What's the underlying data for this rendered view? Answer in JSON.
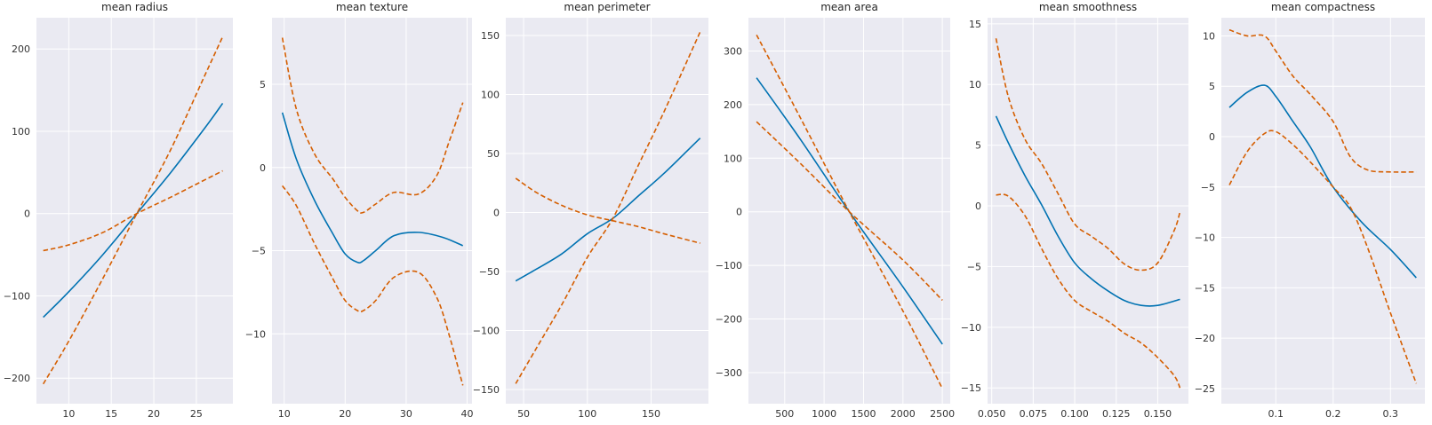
{
  "figure": {
    "background": "#ffffff",
    "panel_background": "#EAEAF2",
    "grid_color": "#ffffff"
  },
  "chart_data": [
    {
      "type": "line",
      "title": "mean radius",
      "xlim": [
        6.2,
        29.3
      ],
      "ylim": [
        -231,
        238
      ],
      "xticks": [
        10,
        15,
        20,
        25
      ],
      "yticks": [
        -200,
        -100,
        0,
        100,
        200
      ],
      "grid": true,
      "series": [
        {
          "role": "partial dependence",
          "color": "#0072B2",
          "dash": "solid",
          "x": [
            7,
            10,
            14,
            18,
            22,
            26,
            28.1
          ],
          "y": [
            -126,
            -95,
            -50,
            0,
            50,
            104,
            134
          ]
        },
        {
          "role": "upper confidence",
          "color": "#D55E00",
          "dash": "dashed",
          "x": [
            7,
            10,
            14,
            18,
            22,
            26,
            28.1
          ],
          "y": [
            -45,
            -38,
            -23,
            0,
            20,
            41,
            52
          ]
        },
        {
          "role": "lower confidence",
          "color": "#D55E00",
          "dash": "dashed",
          "x": [
            7,
            10,
            14,
            18,
            22,
            26,
            28.1
          ],
          "y": [
            -207,
            -155,
            -79,
            0,
            78,
            168,
            215
          ]
        }
      ]
    },
    {
      "type": "line",
      "title": "mean texture",
      "xlim": [
        8,
        40.8
      ],
      "ylim": [
        -14.2,
        9
      ],
      "xticks": [
        10,
        20,
        30,
        40
      ],
      "yticks": [
        -10,
        -5,
        0,
        5
      ],
      "grid": true,
      "series": [
        {
          "role": "partial dependence",
          "color": "#0072B2",
          "dash": "solid",
          "x": [
            9.7,
            12,
            15,
            18,
            20,
            22,
            23,
            25,
            28,
            32,
            36,
            39.3
          ],
          "y": [
            3.3,
            0.5,
            -2,
            -4,
            -5.2,
            -5.7,
            -5.6,
            -5,
            -4.1,
            -3.9,
            -4.2,
            -4.7
          ]
        },
        {
          "role": "upper confidence",
          "color": "#D55E00",
          "dash": "dashed",
          "x": [
            9.7,
            12,
            15,
            18,
            20,
            22,
            23,
            25,
            28,
            32,
            35,
            37,
            39.3
          ],
          "y": [
            7.8,
            3.5,
            0.8,
            -0.7,
            -1.8,
            -2.6,
            -2.7,
            -2.2,
            -1.5,
            -1.6,
            -0.5,
            1.5,
            3.9
          ]
        },
        {
          "role": "lower confidence",
          "color": "#D55E00",
          "dash": "dashed",
          "x": [
            9.7,
            12,
            15,
            18,
            20,
            22,
            23,
            25,
            28,
            32,
            35,
            37,
            39.3
          ],
          "y": [
            -1.1,
            -2.3,
            -4.6,
            -6.7,
            -8,
            -8.6,
            -8.6,
            -8,
            -6.6,
            -6.3,
            -7.8,
            -10,
            -13.1
          ]
        }
      ]
    },
    {
      "type": "line",
      "title": "mean perimeter",
      "xlim": [
        36,
        195
      ],
      "ylim": [
        -162,
        165
      ],
      "xticks": [
        50,
        100,
        150
      ],
      "yticks": [
        -150,
        -100,
        -50,
        0,
        50,
        100,
        150
      ],
      "grid": true,
      "series": [
        {
          "role": "partial dependence",
          "color": "#0072B2",
          "dash": "solid",
          "x": [
            43.8,
            60,
            80,
            100,
            120,
            140,
            160,
            188.5
          ],
          "y": [
            -58,
            -48,
            -35,
            -18,
            -5,
            14,
            33,
            63
          ]
        },
        {
          "role": "upper confidence",
          "color": "#D55E00",
          "dash": "dashed",
          "x": [
            43.8,
            60,
            80,
            100,
            120,
            140,
            160,
            188.5
          ],
          "y": [
            29,
            17,
            6,
            -2,
            -7,
            -12,
            -18,
            -26
          ]
        },
        {
          "role": "lower confidence",
          "color": "#D55E00",
          "dash": "dashed",
          "x": [
            43.8,
            60,
            80,
            100,
            120,
            140,
            160,
            188.5
          ],
          "y": [
            -145,
            -115,
            -78,
            -38,
            -5,
            40,
            85,
            153
          ]
        }
      ]
    },
    {
      "type": "line",
      "title": "mean area",
      "xlim": [
        40,
        2600
      ],
      "ylim": [
        -358,
        362
      ],
      "xticks": [
        500,
        1000,
        1500,
        2000,
        2500
      ],
      "yticks": [
        -300,
        -200,
        -100,
        0,
        100,
        200,
        300
      ],
      "grid": true,
      "series": [
        {
          "role": "partial dependence",
          "color": "#0072B2",
          "dash": "solid",
          "x": [
            143,
            700,
            1320,
            2000,
            2501
          ],
          "y": [
            250,
            135,
            0,
            -140,
            -247
          ]
        },
        {
          "role": "upper confidence",
          "color": "#D55E00",
          "dash": "dashed",
          "x": [
            143,
            700,
            1320,
            2000,
            2501
          ],
          "y": [
            330,
            175,
            0,
            -185,
            -330
          ]
        },
        {
          "role": "lower confidence",
          "color": "#D55E00",
          "dash": "dashed",
          "x": [
            143,
            700,
            1320,
            2000,
            2501
          ],
          "y": [
            168,
            90,
            0,
            -90,
            -165
          ]
        }
      ]
    },
    {
      "type": "line",
      "title": "mean smoothness",
      "xlim": [
        0.0475,
        0.1685
      ],
      "ylim": [
        -16.3,
        15.5
      ],
      "xticks": [
        0.05,
        0.075,
        0.1,
        0.125,
        0.15
      ],
      "xticklabels": [
        "0.050",
        "0.075",
        "0.100",
        "0.125",
        "0.150"
      ],
      "yticks": [
        -15,
        -10,
        -5,
        0,
        5,
        10,
        15
      ],
      "grid": true,
      "series": [
        {
          "role": "partial dependence",
          "color": "#0072B2",
          "dash": "solid",
          "x": [
            0.0526,
            0.06,
            0.07,
            0.08,
            0.09,
            0.1,
            0.11,
            0.12,
            0.13,
            0.14,
            0.15,
            0.1634
          ],
          "y": [
            7.4,
            5.2,
            2.5,
            0.1,
            -2.5,
            -4.7,
            -6,
            -7,
            -7.8,
            -8.2,
            -8.2,
            -7.7
          ]
        },
        {
          "role": "upper confidence",
          "color": "#D55E00",
          "dash": "dashed",
          "x": [
            0.0526,
            0.06,
            0.07,
            0.08,
            0.09,
            0.1,
            0.11,
            0.12,
            0.13,
            0.14,
            0.15,
            0.16,
            0.1634
          ],
          "y": [
            13.8,
            9,
            5.5,
            3.5,
            1,
            -1.5,
            -2.5,
            -3.5,
            -4.8,
            -5.3,
            -4.7,
            -2,
            -0.5
          ]
        },
        {
          "role": "lower confidence",
          "color": "#D55E00",
          "dash": "dashed",
          "x": [
            0.0526,
            0.06,
            0.07,
            0.08,
            0.09,
            0.1,
            0.11,
            0.12,
            0.13,
            0.14,
            0.15,
            0.16,
            0.1634
          ],
          "y": [
            0.9,
            0.8,
            -0.8,
            -3.5,
            -6,
            -7.8,
            -8.7,
            -9.5,
            -10.5,
            -11.3,
            -12.5,
            -14,
            -15
          ]
        }
      ]
    },
    {
      "type": "line",
      "title": "mean compactness",
      "xlim": [
        0.005,
        0.36
      ],
      "ylim": [
        -26.5,
        11.8
      ],
      "xticks": [
        0.1,
        0.2,
        0.3
      ],
      "yticks": [
        -25,
        -20,
        -15,
        -10,
        -5,
        0,
        5,
        10
      ],
      "grid": true,
      "series": [
        {
          "role": "partial dependence",
          "color": "#0072B2",
          "dash": "solid",
          "x": [
            0.019,
            0.05,
            0.08,
            0.1,
            0.13,
            0.16,
            0.2,
            0.25,
            0.3,
            0.345
          ],
          "y": [
            2.9,
            4.4,
            5.1,
            4,
            1.5,
            -1,
            -5,
            -8.5,
            -11.2,
            -14
          ]
        },
        {
          "role": "upper confidence",
          "color": "#D55E00",
          "dash": "dashed",
          "x": [
            0.019,
            0.05,
            0.08,
            0.1,
            0.13,
            0.16,
            0.2,
            0.23,
            0.26,
            0.3,
            0.345
          ],
          "y": [
            10.6,
            10,
            10,
            8.5,
            6,
            4.2,
            1.5,
            -2,
            -3.3,
            -3.5,
            -3.5
          ]
        },
        {
          "role": "lower confidence",
          "color": "#D55E00",
          "dash": "dashed",
          "x": [
            0.019,
            0.05,
            0.08,
            0.1,
            0.13,
            0.16,
            0.2,
            0.23,
            0.26,
            0.3,
            0.345
          ],
          "y": [
            -4.8,
            -1.5,
            0.3,
            0.5,
            -0.8,
            -2.5,
            -5,
            -7,
            -11,
            -17.5,
            -24.5
          ]
        }
      ]
    }
  ]
}
